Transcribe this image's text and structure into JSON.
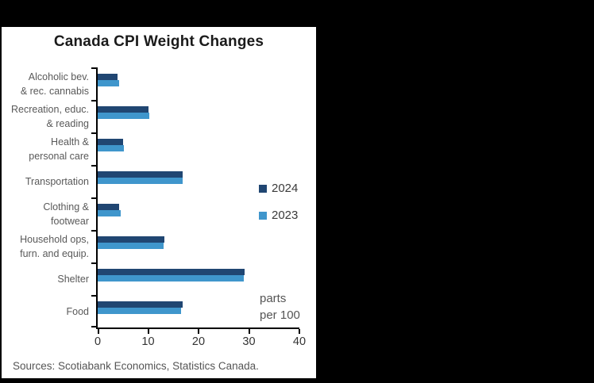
{
  "chart_data": {
    "type": "bar",
    "orientation": "horizontal",
    "title": "Canada CPI Weight Changes",
    "categories": [
      "Alcoholic bev.\n& rec. cannabis",
      "Recreation, educ.\n& reading",
      "Health &\npersonal care",
      "Transportation",
      "Clothing &\nfootwear",
      "Household ops,\nfurn. and equip.",
      "Shelter",
      "Food"
    ],
    "series": [
      {
        "name": "2024",
        "color": "#204672",
        "values": [
          4.0,
          10.1,
          5.0,
          16.9,
          4.3,
          13.2,
          29.2,
          16.9
        ]
      },
      {
        "name": "2023",
        "color": "#3f96cc",
        "values": [
          4.3,
          10.3,
          5.2,
          16.8,
          4.5,
          13.0,
          29.0,
          16.6
        ]
      }
    ],
    "xlim": [
      0,
      40
    ],
    "xticks": [
      0,
      10,
      20,
      30,
      40
    ],
    "unit_annotation": "parts\nper 100",
    "legend_position": "middle-right",
    "grid": false
  },
  "footer": {
    "sources": "Sources: Scotiabank Economics, Statistics Canada."
  },
  "colors": {
    "background": "#000000",
    "panel": "#ffffff",
    "axis": "#000000",
    "label_gray": "#595959",
    "title": "#1a1a1a"
  }
}
